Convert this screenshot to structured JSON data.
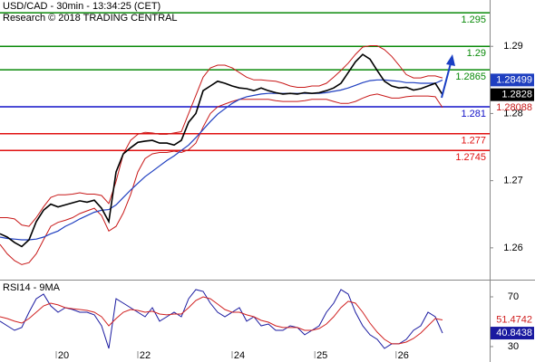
{
  "chart_data": [
    {
      "type": "line",
      "title": "USD/CAD - 30min - 13:34:25 (CET)",
      "subtitle": "Research © 2018 TRADING CENTRAL",
      "x": [
        0,
        1,
        2,
        3,
        4,
        5,
        6,
        7,
        8,
        9,
        10,
        11,
        12,
        13,
        14,
        15,
        16,
        17,
        18,
        19,
        20,
        21,
        22,
        23,
        24,
        25,
        26,
        27,
        28,
        29,
        30,
        31,
        32,
        33,
        34,
        35,
        36,
        37,
        38,
        39,
        40,
        41,
        42,
        43,
        44,
        45,
        46,
        47,
        48,
        49,
        50,
        51,
        52,
        53,
        54,
        55,
        56,
        57,
        58,
        59,
        60,
        61
      ],
      "xlim": [
        0,
        67.5
      ],
      "ylim": [
        1.2554,
        1.2969
      ],
      "yticks": [
        1.26,
        1.27,
        1.28,
        1.29
      ],
      "levels": [
        {
          "value": 1.295,
          "color": "#0a8a0a"
        },
        {
          "value": 1.29,
          "color": "#0a8a0a"
        },
        {
          "value": 1.2865,
          "color": "#0a8a0a"
        },
        {
          "value": 1.281,
          "color": "#1010c8"
        },
        {
          "value": 1.277,
          "color": "#e01010"
        },
        {
          "value": 1.2745,
          "color": "#e01010"
        }
      ],
      "series": [
        {
          "color": "#c81818",
          "width": 1,
          "values": [
            1.2645,
            1.2645,
            1.2643,
            1.2634,
            1.2632,
            1.2645,
            1.2661,
            1.2675,
            1.2679,
            1.2679,
            1.268,
            1.2682,
            1.268,
            1.268,
            1.2678,
            1.2666,
            1.2699,
            1.274,
            1.276,
            1.2769,
            1.2772,
            1.2771,
            1.2769,
            1.2769,
            1.2771,
            1.2773,
            1.28,
            1.2827,
            1.2854,
            1.2868,
            1.2872,
            1.2872,
            1.2868,
            1.2861,
            1.2854,
            1.285,
            1.285,
            1.2849,
            1.2848,
            1.2845,
            1.2841,
            1.2839,
            1.2839,
            1.2841,
            1.2841,
            1.2845,
            1.2854,
            1.2864,
            1.2875,
            1.2888,
            1.2899,
            1.2901,
            1.2901,
            1.2895,
            1.2885,
            1.2872,
            1.2858,
            1.2853,
            1.2853,
            1.2856,
            1.2856,
            1.2853
          ]
        },
        {
          "color": "#c81818",
          "width": 1,
          "last_value_tag": "text",
          "values": [
            1.2605,
            1.2591,
            1.2581,
            1.2575,
            1.2578,
            1.2591,
            1.2612,
            1.2632,
            1.2638,
            1.2641,
            1.2645,
            1.2651,
            1.2655,
            1.2659,
            1.2648,
            1.2625,
            1.2632,
            1.2652,
            1.2679,
            1.2713,
            1.2733,
            1.274,
            1.2742,
            1.2742,
            1.2744,
            1.2742,
            1.2746,
            1.2756,
            1.278,
            1.28,
            1.281,
            1.2814,
            1.2818,
            1.2821,
            1.2821,
            1.2821,
            1.2821,
            1.2821,
            1.2819,
            1.2818,
            1.2818,
            1.2818,
            1.2819,
            1.2821,
            1.2821,
            1.2821,
            1.2818,
            1.2815,
            1.2815,
            1.2818,
            1.2823,
            1.2827,
            1.2829,
            1.2826,
            1.2823,
            1.2823,
            1.2825,
            1.2826,
            1.2826,
            1.2826,
            1.2825,
            1.28088
          ]
        },
        {
          "color": "#1f3fc0",
          "width": 1.2,
          "last_value_tag": "box",
          "values": [
            1.2616,
            1.2614,
            1.2613,
            1.2612,
            1.2612,
            1.2613,
            1.2616,
            1.2621,
            1.2625,
            1.2632,
            1.2637,
            1.2643,
            1.2648,
            1.2653,
            1.2656,
            1.2657,
            1.2664,
            1.2675,
            1.2686,
            1.2696,
            1.2706,
            1.2714,
            1.2722,
            1.273,
            1.2737,
            1.2745,
            1.2753,
            1.2764,
            1.2776,
            1.2788,
            1.2799,
            1.2807,
            1.2815,
            1.2821,
            1.2825,
            1.2827,
            1.2829,
            1.283,
            1.283,
            1.283,
            1.283,
            1.283,
            1.283,
            1.283,
            1.283,
            1.2831,
            1.2833,
            1.2835,
            1.2838,
            1.2842,
            1.2846,
            1.2849,
            1.285,
            1.285,
            1.2849,
            1.2848,
            1.2846,
            1.2846,
            1.2845,
            1.2845,
            1.2845,
            1.28499
          ]
        },
        {
          "color": "#000000",
          "width": 1.6,
          "last_value_tag": "box",
          "values": [
            1.2621,
            1.2616,
            1.2608,
            1.2602,
            1.2612,
            1.2639,
            1.2656,
            1.2665,
            1.2661,
            1.2664,
            1.2667,
            1.267,
            1.2668,
            1.2671,
            1.2659,
            1.2639,
            1.2713,
            1.274,
            1.2749,
            1.2757,
            1.2759,
            1.276,
            1.2756,
            1.2756,
            1.2753,
            1.276,
            1.2787,
            1.28,
            1.2834,
            1.2841,
            1.2848,
            1.2845,
            1.2841,
            1.2838,
            1.2837,
            1.2834,
            1.2838,
            1.2834,
            1.2831,
            1.2829,
            1.283,
            1.2829,
            1.2831,
            1.283,
            1.2831,
            1.2834,
            1.2838,
            1.2845,
            1.2861,
            1.2877,
            1.2888,
            1.2881,
            1.2864,
            1.2848,
            1.2841,
            1.2838,
            1.2839,
            1.2835,
            1.2837,
            1.2841,
            1.2845,
            1.2828
          ]
        }
      ]
    },
    {
      "type": "line",
      "title": "RSI14 - 9MA",
      "x": [
        0,
        1,
        2,
        3,
        4,
        5,
        6,
        7,
        8,
        9,
        10,
        11,
        12,
        13,
        14,
        15,
        16,
        17,
        18,
        19,
        20,
        21,
        22,
        23,
        24,
        25,
        26,
        27,
        28,
        29,
        30,
        31,
        32,
        33,
        34,
        35,
        36,
        37,
        38,
        39,
        40,
        41,
        42,
        43,
        44,
        45,
        46,
        47,
        48,
        49,
        50,
        51,
        52,
        53,
        54,
        55,
        56,
        57,
        58,
        59,
        60,
        61
      ],
      "xlim": [
        0,
        67.5
      ],
      "xticks": [
        {
          "value": 7.75,
          "label": "20"
        },
        {
          "value": 19,
          "label": "22"
        },
        {
          "value": 32,
          "label": "24"
        },
        {
          "value": 43.4,
          "label": "25"
        },
        {
          "value": 54.6,
          "label": "26"
        }
      ],
      "ylim": [
        17.6,
        83.1
      ],
      "yticks": [
        30,
        70
      ],
      "series": [
        {
          "color": "#1a1aa0",
          "width": 1,
          "last_value_tag": "box",
          "values": [
            50.4,
            46.7,
            43.1,
            45.3,
            57.6,
            68.5,
            72.2,
            62.7,
            57.6,
            61.3,
            59.8,
            57.6,
            57.6,
            55.5,
            46.7,
            28.5,
            68.5,
            64.9,
            61.3,
            57.6,
            54.0,
            61.3,
            50.4,
            54.0,
            57.6,
            54.0,
            68.5,
            75.8,
            74.4,
            64.9,
            57.6,
            54.0,
            57.6,
            61.3,
            50.4,
            54.0,
            46.7,
            48.2,
            43.1,
            43.1,
            46.7,
            45.3,
            39.5,
            43.1,
            46.7,
            57.6,
            64.9,
            75.8,
            72.2,
            57.6,
            46.7,
            39.5,
            35.8,
            28.5,
            32.2,
            32.2,
            35.8,
            43.1,
            46.7,
            57.6,
            54.0,
            40.8438
          ]
        },
        {
          "color": "#d02020",
          "width": 1,
          "last_value_tag": "text",
          "values": [
            54.0,
            52.5,
            50.4,
            48.9,
            52.5,
            57.6,
            62.7,
            64.9,
            63.5,
            61.3,
            60.5,
            59.8,
            59.1,
            57.6,
            54.0,
            46.7,
            52.5,
            57.6,
            59.8,
            59.1,
            57.6,
            58.4,
            56.2,
            55.5,
            56.2,
            56.2,
            61.3,
            67.1,
            70,
            68.5,
            64.2,
            59.8,
            57.6,
            57.6,
            55.5,
            54.0,
            51.1,
            49.6,
            46.7,
            45.3,
            45.3,
            45.3,
            43.1,
            43.1,
            44.5,
            48.2,
            54.0,
            61.3,
            66.4,
            64.9,
            57.6,
            48.9,
            41.6,
            35.8,
            32.2,
            32.2,
            33.6,
            36.5,
            40.9,
            46.7,
            52.5,
            51.4742
          ]
        }
      ]
    }
  ]
}
